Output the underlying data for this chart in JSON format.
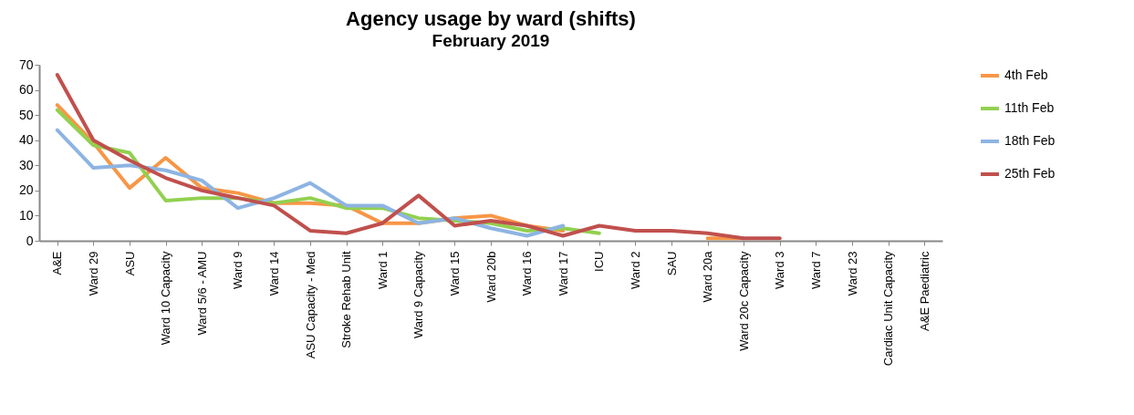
{
  "chart_data": {
    "type": "line",
    "title": "Agency usage by ward (shifts)",
    "subtitle": "February 2019",
    "categories": [
      "A&E",
      "Ward 29",
      "ASU",
      "Ward 10 Capacity",
      "Ward 5/6 - AMU",
      "Ward 9",
      "Ward 14",
      "ASU Capacity - Med",
      "Stroke Rehab Unit",
      "Ward 1",
      "Ward 9 Capacity",
      "Ward 15",
      "Ward 20b",
      "Ward 16",
      "Ward 17",
      "ICU",
      "Ward 2",
      "SAU",
      "Ward 20a",
      "Ward 20c Capacity",
      "Ward 3",
      "Ward 7",
      "Ward 23",
      "Cardiac Unit Capacity",
      "A&E Paediatric"
    ],
    "series": [
      {
        "name": "4th Feb",
        "color": "#f79646",
        "values": [
          54,
          39,
          21,
          33,
          21,
          19,
          15,
          15,
          14,
          7,
          7,
          9,
          10,
          6,
          4,
          null,
          null,
          null,
          1,
          1,
          null,
          null,
          null,
          null,
          null
        ]
      },
      {
        "name": "11th Feb",
        "color": "#92d050",
        "values": [
          52,
          38,
          35,
          16,
          17,
          17,
          15,
          17,
          13,
          13,
          9,
          8,
          7,
          4,
          5,
          3,
          null,
          null,
          null,
          null,
          null,
          null,
          null,
          null,
          null
        ]
      },
      {
        "name": "18th Feb",
        "color": "#8db4e2",
        "values": [
          44,
          29,
          30,
          28,
          24,
          13,
          17,
          23,
          14,
          14,
          7,
          9,
          5,
          2,
          6,
          null,
          null,
          null,
          null,
          null,
          null,
          null,
          null,
          null,
          null
        ]
      },
      {
        "name": "25th Feb",
        "color": "#c0504d",
        "values": [
          66,
          40,
          32,
          25,
          20,
          17,
          14,
          4,
          3,
          7,
          18,
          6,
          8,
          6,
          2,
          6,
          4,
          4,
          3,
          1,
          1,
          null,
          null,
          null,
          null
        ]
      }
    ],
    "ylim": [
      0,
      70
    ],
    "yticks": [
      0,
      10,
      20,
      30,
      40,
      50,
      60,
      70
    ],
    "grid": false,
    "legend": "right",
    "marker": "none",
    "line_style": "solid"
  }
}
